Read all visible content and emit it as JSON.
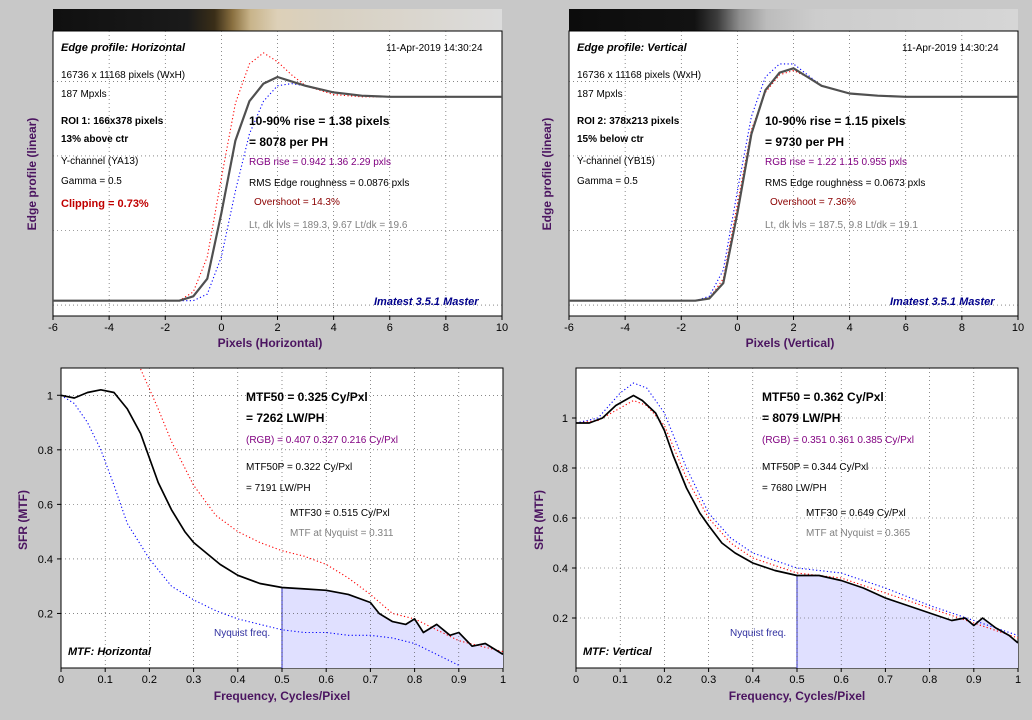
{
  "colors": {
    "background": "#c8c8c8",
    "plot_bg": "#ffffff",
    "fill": "#e0e0ff",
    "red_channel": "#ff0000",
    "blue_channel": "#0000ff",
    "luma": "#505050",
    "axis_title": "#4b1460"
  },
  "edge_h": {
    "header": "Edge profile: Horizontal",
    "timestamp": "11-Apr-2019 14:30:24",
    "info": [
      "16736 x 11168 pixels (WxH)",
      "187 Mpxls",
      "ROI 1:  166x378 pixels",
      "13% above ctr",
      "Y-channel  (YA13)",
      "Gamma = 0.5"
    ],
    "clipping": "Clipping =   0.73%",
    "rise": "10-90% rise = 1.38 pixels",
    "per_ph": "= 8078 per PH",
    "rgb_rise": "RGB rise = 0.942  1.36  2.29 pxls",
    "roughness": "RMS Edge roughness = 0.0876 pxls",
    "overshoot": "Overshoot = 14.3%",
    "levels": "Lt, dk lvls = 189.3, 9.67    Lt/dk = 19.6",
    "master": "Imatest 3.5.1 Master",
    "xlabel": "Pixels (Horizontal)",
    "ylabel": "Edge profile (linear)"
  },
  "edge_v": {
    "header": "Edge profile: Vertical",
    "timestamp": "11-Apr-2019 14:30:24",
    "info": [
      "16736 x 11168 pixels (WxH)",
      "187 Mpxls",
      "ROI 2:  378x213 pixels",
      "15% below ctr",
      "Y-channel  (YB15)",
      "Gamma = 0.5"
    ],
    "rise": "10-90% rise = 1.15 pixels",
    "per_ph": "= 9730 per PH",
    "rgb_rise": "RGB rise = 1.22  1.15  0.955 pxls",
    "roughness": "RMS Edge roughness = 0.0673 pxls",
    "overshoot": "Overshoot = 7.36%",
    "levels": "Lt, dk lvls = 187.5, 9.8    Lt/dk = 19.1",
    "master": "Imatest 3.5.1 Master",
    "xlabel": "Pixels (Vertical)",
    "ylabel": "Edge profile (linear)"
  },
  "mtf_h": {
    "corner": "MTF: Horizontal",
    "mtf50": "MTF50 = 0.325 Cy/Pxl",
    "lwph": "= 7262 LW/PH",
    "rgb": "(RGB) = 0.407  0.327  0.216 Cy/Pxl",
    "mtf50p": "MTF50P = 0.322 Cy/Pxl",
    "mtf50p_lwph": "= 7191 LW/PH",
    "mtf30": "MTF30 = 0.515 Cy/Pxl",
    "nyq_val": "MTF at Nyquist = 0.311",
    "nyq_label": "Nyquist freq.",
    "xlabel": "Frequency, Cycles/Pixel",
    "ylabel": "SFR (MTF)"
  },
  "mtf_v": {
    "corner": "MTF: Vertical",
    "mtf50": "MTF50 = 0.362 Cy/Pxl",
    "lwph": "= 8079 LW/PH",
    "rgb": "(RGB) = 0.351  0.361  0.385 Cy/Pxl",
    "mtf50p": "MTF50P = 0.344 Cy/Pxl",
    "mtf50p_lwph": "= 7680 LW/PH",
    "mtf30": "MTF30 = 0.649 Cy/Pxl",
    "nyq_val": "MTF at Nyquist = 0.365",
    "nyq_label": "Nyquist freq.",
    "xlabel": "Frequency, Cycles/Pixel",
    "ylabel": "SFR (MTF)"
  },
  "chart_data": [
    {
      "type": "line",
      "id": "edge_h",
      "xlabel": "Pixels (Horizontal)",
      "ylabel": "Edge profile (linear)",
      "xlim": [
        -6,
        10
      ],
      "xticks": [
        -6,
        -4,
        -2,
        0,
        2,
        4,
        6,
        8,
        10
      ],
      "series": [
        {
          "color": "#505050",
          "style": "solid",
          "x": [
            -6,
            -1.5,
            -1,
            -0.5,
            0,
            0.5,
            1,
            1.5,
            2,
            2.5,
            3,
            4,
            5,
            6,
            8,
            10
          ],
          "y": [
            0.02,
            0.02,
            0.04,
            0.12,
            0.42,
            0.75,
            0.93,
            1.01,
            1.04,
            1.02,
            1.0,
            0.97,
            0.955,
            0.95,
            0.95,
            0.95
          ]
        },
        {
          "color": "#ff0000",
          "style": "dotted",
          "x": [
            -6,
            -1.5,
            -1,
            -0.5,
            0,
            0.5,
            1,
            1.5,
            2,
            2.5,
            3,
            4,
            5,
            6,
            8,
            10
          ],
          "y": [
            0.02,
            0.02,
            0.06,
            0.22,
            0.58,
            0.92,
            1.1,
            1.15,
            1.11,
            1.05,
            1.0,
            0.96,
            0.95,
            0.95,
            0.95,
            0.95
          ]
        },
        {
          "color": "#0000ff",
          "style": "dotted",
          "x": [
            -6,
            -1.5,
            -1,
            -0.5,
            0,
            0.5,
            1,
            1.5,
            2,
            2.5,
            3,
            4,
            5,
            6,
            8,
            10
          ],
          "y": [
            0.02,
            0.02,
            0.02,
            0.05,
            0.22,
            0.52,
            0.78,
            0.93,
            1.0,
            1.01,
            1.0,
            0.97,
            0.955,
            0.95,
            0.95,
            0.95
          ]
        }
      ]
    },
    {
      "type": "line",
      "id": "edge_v",
      "xlabel": "Pixels (Vertical)",
      "ylabel": "Edge profile (linear)",
      "xlim": [
        -6,
        10
      ],
      "xticks": [
        -6,
        -4,
        -2,
        0,
        2,
        4,
        6,
        8,
        10
      ],
      "series": [
        {
          "color": "#505050",
          "style": "solid",
          "x": [
            -6,
            -1.5,
            -1,
            -0.5,
            0,
            0.5,
            1,
            1.5,
            2,
            2.5,
            3,
            4,
            5,
            6,
            8,
            10
          ],
          "y": [
            0.02,
            0.02,
            0.03,
            0.1,
            0.42,
            0.78,
            0.98,
            1.06,
            1.08,
            1.04,
            1.0,
            0.965,
            0.955,
            0.95,
            0.95,
            0.95
          ]
        },
        {
          "color": "#ff0000",
          "style": "dotted",
          "x": [
            -6,
            -1.5,
            -1,
            -0.5,
            0,
            0.5,
            1,
            1.5,
            2,
            2.5,
            3,
            4,
            5,
            6,
            8,
            10
          ],
          "y": [
            0.02,
            0.02,
            0.03,
            0.12,
            0.46,
            0.8,
            0.97,
            1.05,
            1.07,
            1.04,
            1.0,
            0.965,
            0.955,
            0.95,
            0.95,
            0.95
          ]
        },
        {
          "color": "#0000ff",
          "style": "dotted",
          "x": [
            -6,
            -1.5,
            -1,
            -0.5,
            0,
            0.5,
            1,
            1.5,
            2,
            2.5,
            3,
            4,
            5,
            6,
            8,
            10
          ],
          "y": [
            0.02,
            0.02,
            0.04,
            0.16,
            0.52,
            0.86,
            1.04,
            1.1,
            1.1,
            1.05,
            1.0,
            0.965,
            0.955,
            0.95,
            0.95,
            0.95
          ]
        }
      ]
    },
    {
      "type": "line",
      "id": "mtf_h",
      "xlabel": "Frequency, Cycles/Pixel",
      "ylabel": "SFR (MTF)",
      "xlim": [
        0,
        1
      ],
      "ylim": [
        0,
        1.1
      ],
      "xticks": [
        0,
        0.1,
        0.2,
        0.3,
        0.4,
        0.5,
        0.6,
        0.7,
        0.8,
        0.9,
        1
      ],
      "yticks": [
        0.2,
        0.4,
        0.6,
        0.8,
        1
      ],
      "nyquist": 0.5,
      "series": [
        {
          "color": "#000000",
          "style": "solid",
          "x": [
            0,
            0.03,
            0.06,
            0.09,
            0.12,
            0.15,
            0.18,
            0.2,
            0.22,
            0.25,
            0.28,
            0.3,
            0.33,
            0.36,
            0.4,
            0.45,
            0.5,
            0.55,
            0.6,
            0.65,
            0.7,
            0.72,
            0.75,
            0.78,
            0.8,
            0.82,
            0.85,
            0.88,
            0.9,
            0.93,
            0.96,
            1.0
          ],
          "y": [
            1.0,
            0.99,
            1.01,
            1.02,
            1.01,
            0.95,
            0.86,
            0.77,
            0.68,
            0.58,
            0.5,
            0.46,
            0.42,
            0.38,
            0.34,
            0.31,
            0.295,
            0.29,
            0.285,
            0.27,
            0.24,
            0.2,
            0.17,
            0.16,
            0.18,
            0.13,
            0.16,
            0.12,
            0.13,
            0.08,
            0.09,
            0.05
          ]
        },
        {
          "color": "#ff0000",
          "style": "dotted",
          "x": [
            0.18,
            0.22,
            0.25,
            0.3,
            0.35,
            0.4,
            0.45,
            0.5,
            0.55,
            0.6,
            0.65,
            0.7,
            0.75,
            0.8,
            0.85,
            0.9,
            0.95,
            1.0
          ],
          "y": [
            1.1,
            0.95,
            0.83,
            0.67,
            0.56,
            0.5,
            0.46,
            0.43,
            0.41,
            0.38,
            0.33,
            0.27,
            0.2,
            0.18,
            0.14,
            0.1,
            0.08,
            0.06
          ]
        },
        {
          "color": "#0000ff",
          "style": "dotted",
          "x": [
            0,
            0.03,
            0.06,
            0.09,
            0.12,
            0.15,
            0.2,
            0.25,
            0.3,
            0.35,
            0.4,
            0.45,
            0.5,
            0.55,
            0.6,
            0.65,
            0.7,
            0.75,
            0.8,
            0.85,
            0.9
          ],
          "y": [
            1.0,
            0.97,
            0.9,
            0.8,
            0.67,
            0.53,
            0.4,
            0.3,
            0.25,
            0.21,
            0.18,
            0.16,
            0.14,
            0.13,
            0.13,
            0.12,
            0.12,
            0.11,
            0.09,
            0.05,
            0.01
          ]
        }
      ]
    },
    {
      "type": "line",
      "id": "mtf_v",
      "xlabel": "Frequency, Cycles/Pixel",
      "ylabel": "SFR (MTF)",
      "xlim": [
        0,
        1
      ],
      "ylim": [
        0,
        1.2
      ],
      "xticks": [
        0,
        0.1,
        0.2,
        0.3,
        0.4,
        0.5,
        0.6,
        0.7,
        0.8,
        0.9,
        1
      ],
      "yticks": [
        0.2,
        0.4,
        0.6,
        0.8,
        1
      ],
      "nyquist": 0.5,
      "series": [
        {
          "color": "#000000",
          "style": "solid",
          "x": [
            0,
            0.03,
            0.06,
            0.09,
            0.12,
            0.13,
            0.15,
            0.18,
            0.2,
            0.22,
            0.25,
            0.28,
            0.3,
            0.33,
            0.36,
            0.4,
            0.45,
            0.5,
            0.55,
            0.6,
            0.65,
            0.7,
            0.75,
            0.8,
            0.85,
            0.88,
            0.9,
            0.92,
            0.95,
            0.98,
            1.0
          ],
          "y": [
            0.98,
            0.98,
            1.0,
            1.05,
            1.08,
            1.09,
            1.07,
            1.02,
            0.95,
            0.85,
            0.72,
            0.62,
            0.57,
            0.5,
            0.46,
            0.42,
            0.39,
            0.37,
            0.37,
            0.35,
            0.32,
            0.28,
            0.25,
            0.22,
            0.19,
            0.2,
            0.17,
            0.2,
            0.16,
            0.13,
            0.1
          ]
        },
        {
          "color": "#ff0000",
          "style": "dotted",
          "x": [
            0,
            0.05,
            0.1,
            0.13,
            0.16,
            0.2,
            0.25,
            0.3,
            0.35,
            0.4,
            0.5,
            0.6,
            0.7,
            0.8,
            0.9,
            1.0
          ],
          "y": [
            0.98,
            0.99,
            1.04,
            1.07,
            1.05,
            0.97,
            0.76,
            0.6,
            0.5,
            0.44,
            0.38,
            0.36,
            0.3,
            0.24,
            0.18,
            0.12
          ]
        },
        {
          "color": "#0000ff",
          "style": "dotted",
          "x": [
            0,
            0.05,
            0.1,
            0.13,
            0.16,
            0.2,
            0.25,
            0.3,
            0.35,
            0.4,
            0.5,
            0.6,
            0.7,
            0.8,
            0.9,
            1.0
          ],
          "y": [
            0.98,
            1.0,
            1.1,
            1.14,
            1.12,
            1.02,
            0.8,
            0.62,
            0.52,
            0.46,
            0.4,
            0.38,
            0.32,
            0.25,
            0.19,
            0.13
          ]
        }
      ]
    }
  ]
}
